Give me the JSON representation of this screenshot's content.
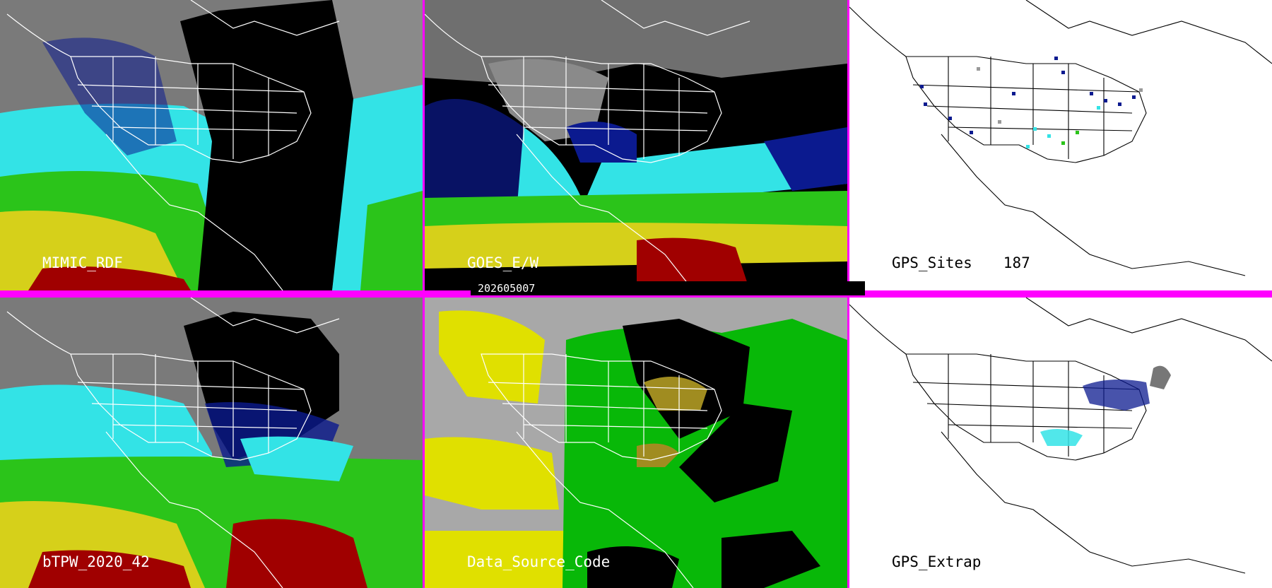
{
  "timestamp": "202605007",
  "colors": {
    "separator": "#ff00ff",
    "no_data": "#000000",
    "dry": "#7a7a7a",
    "low": "#0b1a8f",
    "mid": "#33e3e6",
    "moist": "#2bc41a",
    "high": "#d6d01a",
    "very_high": "#a00000",
    "source_yellow": "#e0e000",
    "source_green": "#08b808",
    "source_gray": "#a8a8a8",
    "source_olive": "#a08c20"
  },
  "panels": [
    {
      "id": "mimic",
      "label": "MIMIC_RDF"
    },
    {
      "id": "goes",
      "label": "GOES_E/W"
    },
    {
      "id": "gps-sites",
      "label": "GPS_Sites",
      "count": "187"
    },
    {
      "id": "btpw",
      "label": "bTPW_2020_42"
    },
    {
      "id": "source",
      "label": "Data_Source_Code"
    },
    {
      "id": "gps-extrap",
      "label": "GPS_Extrap"
    }
  ]
}
